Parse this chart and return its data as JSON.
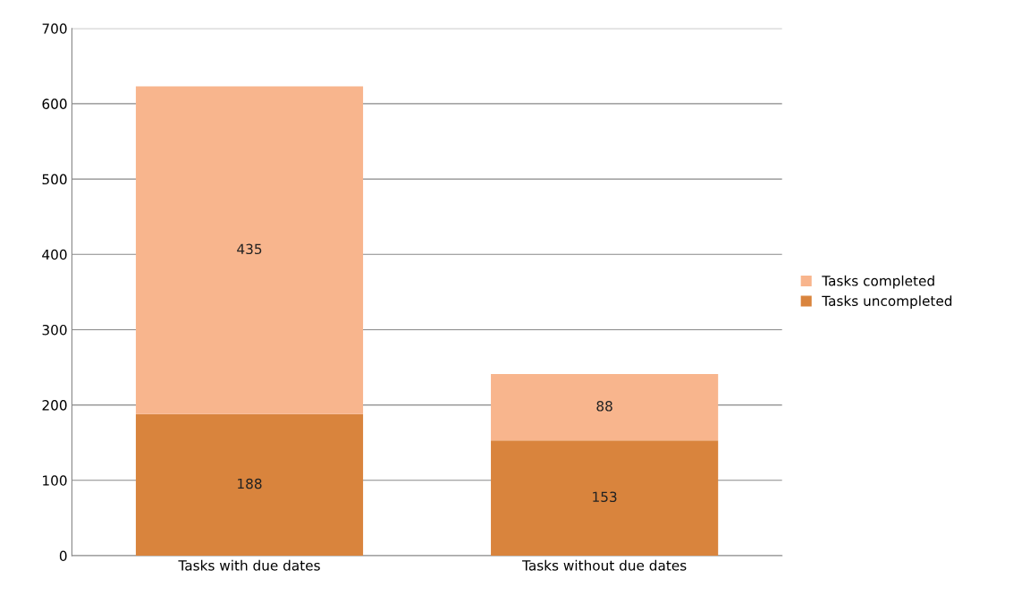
{
  "chart_data": {
    "type": "bar",
    "stacked": true,
    "categories": [
      "Tasks with due dates",
      "Tasks without due dates"
    ],
    "series": [
      {
        "name": "Tasks uncompleted",
        "color": "#d9843d",
        "values": [
          188,
          153
        ]
      },
      {
        "name": "Tasks completed",
        "color": "#f8b58d",
        "values": [
          435,
          88
        ]
      }
    ],
    "ylim": [
      0,
      700
    ],
    "yticks": [
      0,
      100,
      200,
      300,
      400,
      500,
      600,
      700
    ],
    "grid": "y",
    "legend": "right",
    "data_labels": true
  }
}
